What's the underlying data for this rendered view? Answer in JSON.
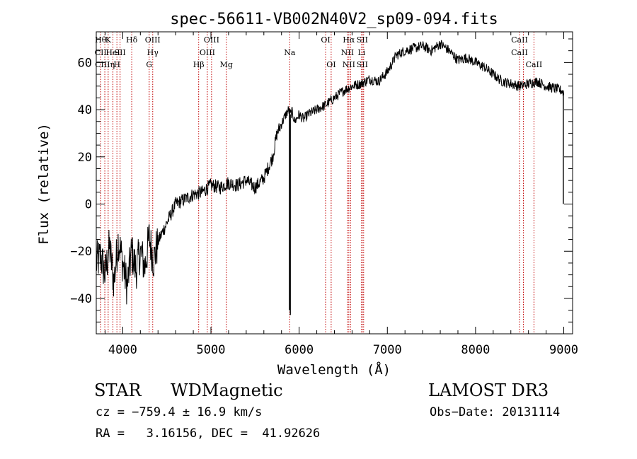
{
  "chart_data": {
    "type": "line",
    "title": "spec-56611-VB002N40V2_sp09-094.fits",
    "xlabel": "Wavelength (Å)",
    "ylabel": "Flux (relative)",
    "xlim": [
      3700,
      9100
    ],
    "ylim": [
      -55,
      73
    ],
    "x_ticks": [
      4000,
      5000,
      6000,
      7000,
      8000,
      9000
    ],
    "x_tick_labels": [
      "4000",
      "5000",
      "6000",
      "7000",
      "8000",
      "9000"
    ],
    "y_ticks": [
      -40,
      -20,
      0,
      20,
      40,
      60
    ],
    "y_tick_labels": [
      "−40",
      "−20",
      "0",
      "20",
      "40",
      "60"
    ],
    "series": [
      {
        "name": "flux",
        "x": [
          3700,
          3750,
          3800,
          3850,
          3900,
          3950,
          4000,
          4050,
          4100,
          4150,
          4200,
          4250,
          4300,
          4350,
          4400,
          4500,
          4600,
          4700,
          4800,
          4900,
          5000,
          5100,
          5200,
          5300,
          5400,
          5500,
          5600,
          5700,
          5750,
          5800,
          5850,
          5880,
          5900,
          5920,
          5950,
          6000,
          6050,
          6100,
          6200,
          6300,
          6400,
          6500,
          6600,
          6700,
          6800,
          6900,
          7000,
          7100,
          7200,
          7300,
          7400,
          7500,
          7600,
          7700,
          7800,
          7900,
          8000,
          8100,
          8200,
          8300,
          8400,
          8500,
          8600,
          8700,
          8800,
          8900,
          8980,
          9000
        ],
        "y": [
          -25,
          -22,
          -30,
          -18,
          -33,
          -15,
          -25,
          -35,
          -20,
          -28,
          -20,
          -27,
          -14,
          -24,
          -16,
          -8,
          0,
          2,
          4,
          5,
          8,
          7,
          9,
          8,
          10,
          7,
          11,
          20,
          30,
          34,
          38,
          40,
          38,
          39,
          35,
          38,
          36,
          38,
          40,
          42,
          45,
          48,
          50,
          51,
          53,
          52,
          56,
          63,
          65,
          66,
          67,
          65,
          68,
          65,
          61,
          62,
          60,
          58,
          55,
          52,
          51,
          50,
          51,
          52,
          50,
          49,
          48,
          47
        ]
      }
    ],
    "spikes": [
      {
        "x": 5890,
        "y_low": -45
      },
      {
        "x": 5900,
        "y_low": -47
      },
      {
        "x": 8995,
        "y_low": 0
      }
    ],
    "lines": [
      {
        "x": 3750,
        "labels": [
          "Hθ",
          "CII"
        ]
      },
      {
        "x": 3797,
        "labels": [
          "",
          "",
          "CIIIη"
        ]
      },
      {
        "x": 3835,
        "labels": [
          "K"
        ]
      },
      {
        "x": 3889,
        "labels": [
          "",
          "HeI"
        ]
      },
      {
        "x": 3934,
        "labels": [
          "",
          "",
          "H"
        ]
      },
      {
        "x": 3970,
        "labels": [
          "",
          "SII"
        ]
      },
      {
        "x": 4102,
        "labels": [
          "Hδ"
        ]
      },
      {
        "x": 4300,
        "labels": [
          "",
          "",
          "G"
        ]
      },
      {
        "x": 4340,
        "labels": [
          "OIII",
          "Hγ"
        ]
      },
      {
        "x": 4861,
        "labels": [
          "",
          "",
          "Hβ"
        ]
      },
      {
        "x": 4959,
        "labels": [
          "",
          "OIII"
        ]
      },
      {
        "x": 5007,
        "labels": [
          "OIII"
        ]
      },
      {
        "x": 5175,
        "labels": [
          "",
          "",
          "Mg"
        ]
      },
      {
        "x": 5893,
        "labels": [
          "",
          "Na"
        ]
      },
      {
        "x": 6300,
        "labels": [
          "OI"
        ]
      },
      {
        "x": 6363,
        "labels": [
          "",
          "",
          "OI"
        ]
      },
      {
        "x": 6548,
        "labels": [
          "",
          "NII"
        ]
      },
      {
        "x": 6563,
        "labels": [
          "Hα",
          "",
          "NII"
        ]
      },
      {
        "x": 6583,
        "labels": [
          "",
          "",
          ""
        ]
      },
      {
        "x": 6708,
        "labels": [
          "",
          "Li"
        ]
      },
      {
        "x": 6716,
        "labels": [
          "SII",
          "",
          "SII"
        ]
      },
      {
        "x": 6731,
        "labels": [
          "",
          "",
          ""
        ]
      },
      {
        "x": 8498,
        "labels": [
          "CaII",
          "CaII"
        ]
      },
      {
        "x": 8542,
        "labels": [
          "",
          "",
          ""
        ]
      },
      {
        "x": 8662,
        "labels": [
          "",
          "",
          "CaII"
        ]
      }
    ]
  },
  "footer": {
    "object_class": "STAR",
    "subclass": "WDMagnetic",
    "survey": "LAMOST DR3",
    "cz": "cz = −759.4 ± 16.9 km/s",
    "obs_date": "Obs−Date: 20131114",
    "coords": "RA =   3.16156, DEC =  41.92626"
  }
}
